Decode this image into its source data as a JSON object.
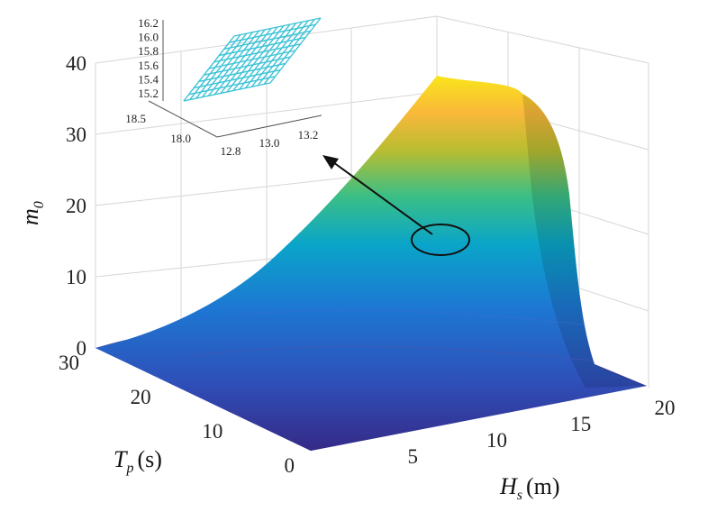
{
  "chart_data": [
    {
      "type": "surface",
      "xlabel": "H",
      "xlabel_sub": "s",
      "xlabel_unit": "(m)",
      "ylabel": "T",
      "ylabel_sub": "p",
      "ylabel_unit": "(s)",
      "zlabel": "m",
      "zlabel_sub": "0",
      "x_ticks": [
        "5",
        "10",
        "15",
        "20"
      ],
      "y_ticks": [
        "0",
        "10",
        "20",
        "30"
      ],
      "z_ticks": [
        "0",
        "10",
        "20",
        "30",
        "40"
      ],
      "xlim": [
        0,
        20
      ],
      "ylim": [
        0,
        30
      ],
      "zlim": [
        0,
        40
      ],
      "grid": true,
      "colormap": "parula",
      "colors": [
        "#352a87",
        "#1f6bd6",
        "#0aa5c9",
        "#3bbf85",
        "#b8bd31",
        "#f9c932",
        "#f9fb0e"
      ],
      "description_note": ""
    },
    {
      "type": "wireframe-inset",
      "x_ticks": [
        "12.8",
        "13.0",
        "13.2"
      ],
      "y_ticks": [
        "18.0",
        "18.5"
      ],
      "z_ticks": [
        "15.2",
        "15.4",
        "15.6",
        "15.8",
        "16.0",
        "16.2"
      ],
      "line_color": "#3ec3d6"
    }
  ]
}
